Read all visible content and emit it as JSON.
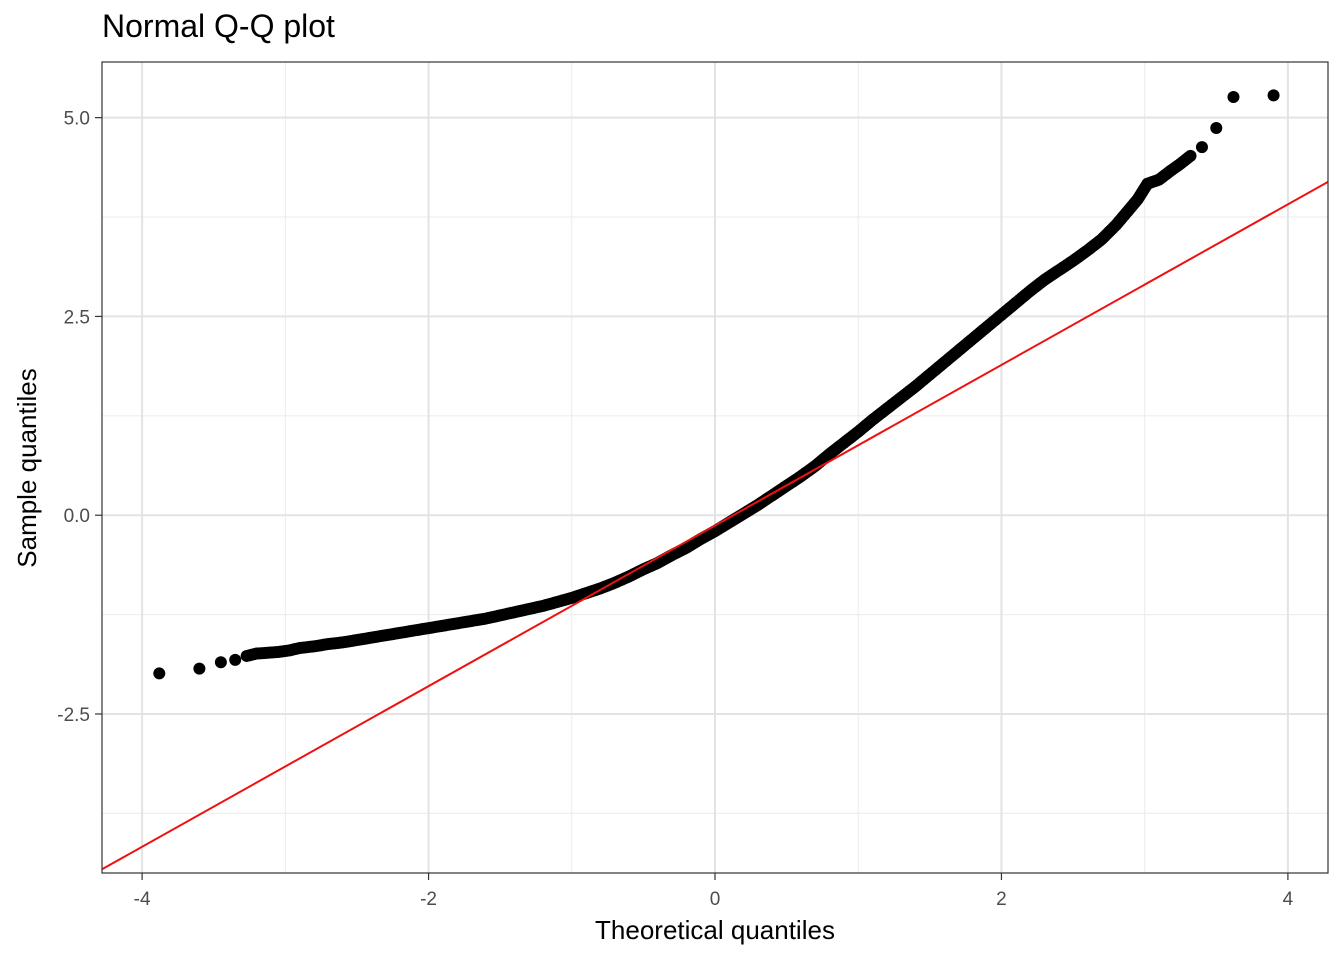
{
  "chart_data": {
    "type": "scatter",
    "title": "Normal Q-Q plot",
    "xlabel": "Theoretical quantiles",
    "ylabel": "Sample quantiles",
    "xlim": [
      -4.28,
      4.28
    ],
    "ylim": [
      -4.5,
      5.7
    ],
    "x_ticks": [
      -4,
      -2,
      0,
      2,
      4
    ],
    "x_tick_labels": [
      "-4",
      "-2",
      "0",
      "2",
      "4"
    ],
    "y_ticks": [
      -2.5,
      0.0,
      2.5,
      5.0
    ],
    "y_tick_labels": [
      "-2.5",
      "0.0",
      "2.5",
      "5.0"
    ],
    "grid": true,
    "reference_line": {
      "intercept": -0.13,
      "slope": 1.01,
      "color": "#ee1111"
    },
    "points": [
      [
        -3.88,
        -1.99
      ],
      [
        -3.6,
        -1.93
      ],
      [
        -3.45,
        -1.85
      ],
      [
        -3.35,
        -1.82
      ],
      [
        -3.27,
        -1.77
      ],
      [
        -3.2,
        -1.74
      ],
      [
        -3.12,
        -1.73
      ],
      [
        -3.05,
        -1.72
      ],
      [
        -2.97,
        -1.7
      ],
      [
        -2.9,
        -1.67
      ],
      [
        -2.8,
        -1.65
      ],
      [
        -2.7,
        -1.62
      ],
      [
        -2.6,
        -1.6
      ],
      [
        -2.5,
        -1.57
      ],
      [
        -2.4,
        -1.54
      ],
      [
        -2.3,
        -1.51
      ],
      [
        -2.2,
        -1.48
      ],
      [
        -2.1,
        -1.45
      ],
      [
        -2.0,
        -1.42
      ],
      [
        -1.9,
        -1.39
      ],
      [
        -1.8,
        -1.36
      ],
      [
        -1.7,
        -1.33
      ],
      [
        -1.6,
        -1.3
      ],
      [
        -1.5,
        -1.26
      ],
      [
        -1.4,
        -1.22
      ],
      [
        -1.3,
        -1.18
      ],
      [
        -1.2,
        -1.14
      ],
      [
        -1.1,
        -1.09
      ],
      [
        -1.0,
        -1.04
      ],
      [
        -0.9,
        -0.98
      ],
      [
        -0.8,
        -0.92
      ],
      [
        -0.7,
        -0.85
      ],
      [
        -0.6,
        -0.77
      ],
      [
        -0.5,
        -0.68
      ],
      [
        -0.4,
        -0.6
      ],
      [
        -0.3,
        -0.5
      ],
      [
        -0.2,
        -0.41
      ],
      [
        -0.1,
        -0.3
      ],
      [
        0.0,
        -0.2
      ],
      [
        0.1,
        -0.09
      ],
      [
        0.2,
        0.02
      ],
      [
        0.3,
        0.13
      ],
      [
        0.4,
        0.25
      ],
      [
        0.5,
        0.37
      ],
      [
        0.6,
        0.49
      ],
      [
        0.7,
        0.62
      ],
      [
        0.8,
        0.77
      ],
      [
        0.9,
        0.91
      ],
      [
        1.0,
        1.05
      ],
      [
        1.1,
        1.2
      ],
      [
        1.2,
        1.34
      ],
      [
        1.3,
        1.48
      ],
      [
        1.4,
        1.62
      ],
      [
        1.5,
        1.77
      ],
      [
        1.6,
        1.92
      ],
      [
        1.7,
        2.07
      ],
      [
        1.8,
        2.22
      ],
      [
        1.9,
        2.37
      ],
      [
        2.0,
        2.52
      ],
      [
        2.1,
        2.67
      ],
      [
        2.2,
        2.82
      ],
      [
        2.3,
        2.96
      ],
      [
        2.4,
        3.08
      ],
      [
        2.5,
        3.2
      ],
      [
        2.6,
        3.33
      ],
      [
        2.7,
        3.47
      ],
      [
        2.8,
        3.65
      ],
      [
        2.88,
        3.82
      ],
      [
        2.95,
        3.97
      ],
      [
        3.02,
        4.17
      ],
      [
        3.1,
        4.22
      ],
      [
        3.18,
        4.33
      ],
      [
        3.25,
        4.42
      ],
      [
        3.32,
        4.52
      ],
      [
        3.4,
        4.63
      ],
      [
        3.5,
        4.87
      ],
      [
        3.62,
        5.26
      ],
      [
        3.9,
        5.28
      ]
    ]
  }
}
